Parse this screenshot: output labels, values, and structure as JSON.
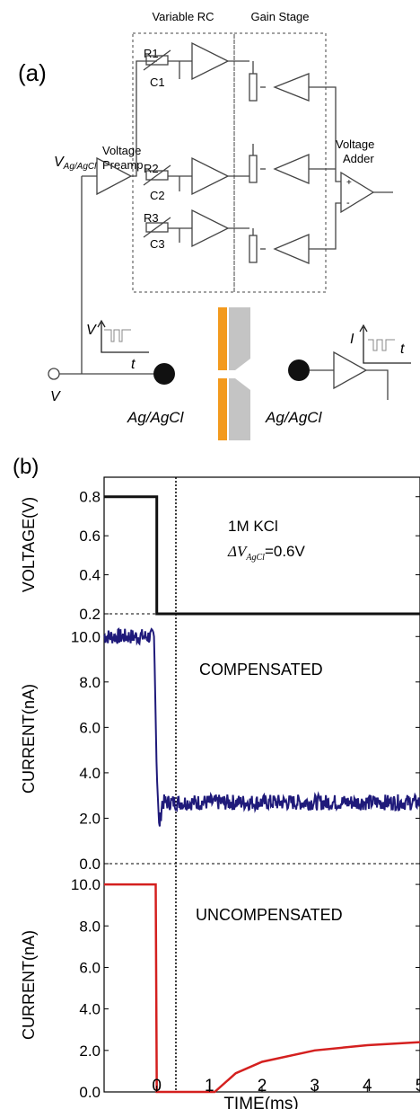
{
  "panel_a": {
    "label": "(a)",
    "variable_rc_label": "Variable RC",
    "gain_stage_label": "Gain Stage",
    "voltage_preamp_label_1": "Voltage",
    "voltage_preamp_label_2": "Preamp",
    "voltage_adder_label_1": "Voltage",
    "voltage_adder_label_2": "Adder",
    "input_label_main": "V",
    "input_label_sub": "Ag/AgCl",
    "resistors": [
      "R1",
      "R2",
      "R3"
    ],
    "capacitors": [
      "C1",
      "C2",
      "C3"
    ],
    "adder_plus": "+",
    "adder_minus": "-",
    "source_label": "V",
    "inset_left_y": "V",
    "inset_left_x": "t",
    "inset_right_y": "I",
    "inset_right_x": "t",
    "electrode_left": "Ag/AgCl",
    "electrode_right": "Ag/AgCl",
    "colors": {
      "membrane": "#f39a1e",
      "chamber": "#c4c4c4",
      "schematic": "#444444"
    }
  },
  "panel_b": {
    "label": "(b)",
    "xlabel": "TIME(ms)",
    "x_ticks": [
      "0",
      "1",
      "2",
      "3",
      "4",
      "5"
    ],
    "colors": {
      "voltage": "#111111",
      "compensated": "#1f1a7a",
      "uncompensated": "#d4201f"
    }
  },
  "chart_data": [
    {
      "type": "line",
      "ylabel": "VOLTAGE(V)",
      "annotation_1": "1M KCl",
      "annotation_2_prefix": "ΔV",
      "annotation_2_sub": "AgCl",
      "annotation_2_suffix": "=0.6V",
      "y_ticks": [
        "0.8",
        "0.6",
        "0.4",
        "0.2"
      ],
      "ylim": [
        0.2,
        0.9
      ],
      "xlim": [
        -1,
        5
      ],
      "series": [
        {
          "x": [
            -1,
            0,
            0,
            5
          ],
          "y": [
            0.8,
            0.8,
            0.2,
            0.2
          ]
        }
      ]
    },
    {
      "type": "line",
      "ylabel": "CURRENT(nA)",
      "annotation": "COMPENSATED",
      "y_ticks": [
        "10.0",
        "8.0",
        "6.0",
        "4.0",
        "2.0",
        "0.0"
      ],
      "ylim": [
        0,
        11
      ],
      "xlim": [
        -1,
        5
      ],
      "series": [
        {
          "x": [
            -1,
            -0.05,
            0,
            0.05,
            0.1,
            5
          ],
          "y": [
            10.0,
            10.0,
            4.0,
            1.5,
            2.7,
            2.7
          ],
          "noise": 0.35
        }
      ]
    },
    {
      "type": "line",
      "ylabel": "CURRENT(nA)",
      "annotation": "UNCOMPENSATED",
      "y_ticks": [
        "10.0",
        "8.0",
        "6.0",
        "4.0",
        "2.0",
        "0.0"
      ],
      "ylim": [
        0,
        11
      ],
      "xlim": [
        -1,
        5
      ],
      "series": [
        {
          "x": [
            -1,
            -0.02,
            0,
            1.1,
            1.5,
            2,
            3,
            4,
            5
          ],
          "y": [
            10.0,
            10.0,
            0.0,
            0.0,
            0.9,
            1.45,
            2.0,
            2.25,
            2.4
          ]
        }
      ]
    }
  ]
}
